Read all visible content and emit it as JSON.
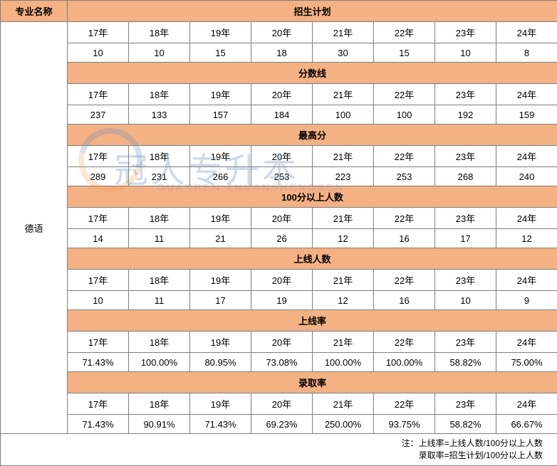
{
  "table": {
    "header_bg": "#f4b183",
    "border_color": "#7f7f7f",
    "col_major_header": "专业名称",
    "major_name": "德语",
    "years": [
      "17年",
      "18年",
      "19年",
      "20年",
      "21年",
      "22年",
      "23年",
      "24年"
    ],
    "sections": [
      {
        "title": "招生计划",
        "values": [
          "10",
          "10",
          "15",
          "18",
          "30",
          "15",
          "10",
          "8"
        ]
      },
      {
        "title": "分数线",
        "values": [
          "237",
          "133",
          "157",
          "184",
          "100",
          "100",
          "192",
          "159"
        ]
      },
      {
        "title": "最高分",
        "values": [
          "289",
          "231",
          "266",
          "253",
          "223",
          "253",
          "268",
          "240"
        ]
      },
      {
        "title": "100分以上人数",
        "values": [
          "14",
          "11",
          "21",
          "26",
          "12",
          "16",
          "17",
          "12"
        ]
      },
      {
        "title": "上线人数",
        "values": [
          "10",
          "11",
          "17",
          "19",
          "12",
          "16",
          "10",
          "9"
        ]
      },
      {
        "title": "上线率",
        "values": [
          "71.43%",
          "100.00%",
          "80.95%",
          "73.08%",
          "100.00%",
          "100.00%",
          "58.82%",
          "75.00%"
        ]
      },
      {
        "title": "录取率",
        "values": [
          "71.43%",
          "90.91%",
          "71.43%",
          "69.23%",
          "250.00%",
          "93.75%",
          "58.82%",
          "66.67%"
        ]
      }
    ],
    "footnote_line1": "注：上线率=上线人数/100分以上人数",
    "footnote_line2": "录取率=招生计划/100分以上人数"
  },
  "watermark": {
    "main": "冠人专升本",
    "sub": "GUANREN ZHUANSHENGBEN"
  }
}
